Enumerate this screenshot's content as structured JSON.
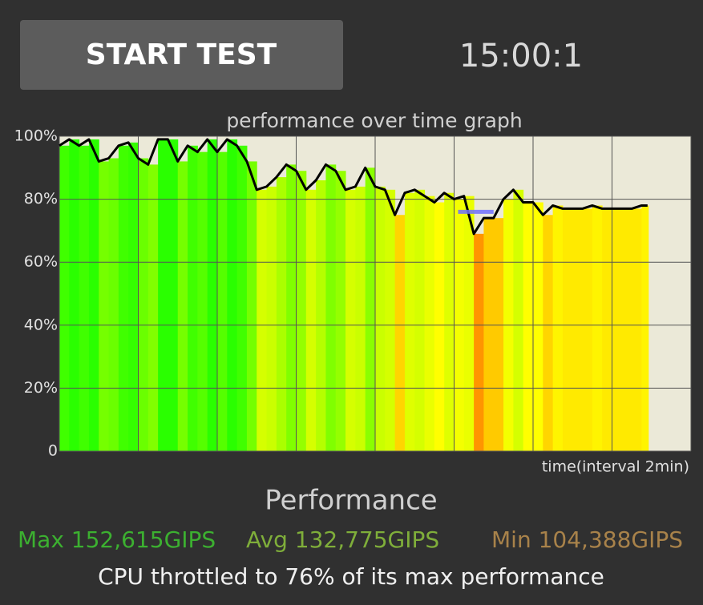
{
  "header": {
    "button": "START TEST",
    "timer": "15:00:1"
  },
  "chart_data": {
    "type": "line",
    "title": "performance over time graph",
    "x_label": "time(interval 2min)",
    "x": [
      0,
      0.25,
      0.5,
      0.75,
      1,
      1.25,
      1.5,
      1.75,
      2,
      2.25,
      2.5,
      2.75,
      3,
      3.25,
      3.5,
      3.75,
      4,
      4.25,
      4.5,
      4.75,
      5,
      5.25,
      5.5,
      5.75,
      6,
      6.25,
      6.5,
      6.75,
      7,
      7.25,
      7.5,
      7.75,
      8,
      8.25,
      8.5,
      8.75,
      9,
      9.25,
      9.5,
      9.75,
      10,
      10.25,
      10.5,
      10.75,
      11,
      11.25,
      11.5,
      11.75,
      12,
      12.25,
      12.5,
      12.75,
      13,
      13.25,
      13.5,
      13.75,
      14,
      14.25,
      14.5,
      14.75,
      14.9
    ],
    "series": [
      {
        "color": "#000000",
        "values": [
          97,
          99,
          97,
          99,
          92,
          93,
          97,
          98,
          93,
          91,
          99,
          99,
          92,
          97,
          95,
          99,
          95,
          99,
          97,
          92,
          83,
          84,
          87,
          91,
          89,
          83,
          86,
          91,
          89,
          83,
          84,
          90,
          84,
          83,
          75,
          82,
          83,
          81,
          79,
          82,
          80,
          81,
          69,
          74,
          74,
          80,
          83,
          79,
          79,
          75,
          78,
          77,
          77,
          77,
          78,
          77,
          77,
          77,
          77,
          78,
          78
        ]
      }
    ],
    "marker": {
      "value": 76,
      "x": [
        10.1,
        11.0
      ],
      "color": "#7070ff"
    },
    "xlim": [
      0,
      16
    ],
    "xticks": [
      0,
      2,
      4,
      6,
      8,
      10,
      12,
      14,
      16
    ],
    "ylim": [
      0,
      100
    ],
    "yticks": [
      0,
      {
        "value": 20,
        "label": "20%"
      },
      {
        "value": 40,
        "label": "40%"
      },
      {
        "value": 60,
        "label": "60%"
      },
      {
        "value": 80,
        "label": "80%"
      },
      {
        "value": 100,
        "label": "100%"
      }
    ],
    "grid": true
  },
  "stats": {
    "heading": "Performance",
    "max": "Max 152,615GIPS",
    "avg": "Avg 132,775GIPS",
    "min": "Min 104,388GIPS",
    "summary": "CPU throttled to 76% of its max performance"
  }
}
